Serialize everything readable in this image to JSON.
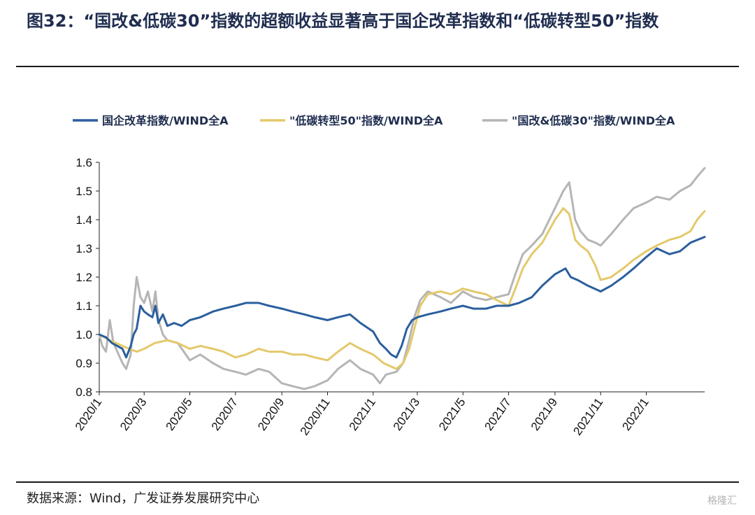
{
  "figure": {
    "title": "图32：“国改&低碳30”指数的超额收益显著高于国企改革指数和“低碳转型50”指数",
    "source": "数据来源：Wind，广发证券发展研究中心",
    "watermark": "格隆汇"
  },
  "chart_data": {
    "type": "line",
    "title": "",
    "xlabel": "",
    "ylabel": "",
    "ylim": [
      0.8,
      1.6
    ],
    "yticks": [
      "0.8",
      "0.9",
      "1.0",
      "1.1",
      "1.2",
      "1.3",
      "1.4",
      "1.5",
      "1.6"
    ],
    "xlim": [
      "2020-01",
      "2022-03-20"
    ],
    "xticks": [
      "2020/1",
      "2020/3",
      "2020/5",
      "2020/7",
      "2020/9",
      "2020/11",
      "2021/1",
      "2021/3",
      "2021/5",
      "2021/7",
      "2021/9",
      "2021/11",
      "2022/1"
    ],
    "grid": false,
    "legend_position": "top",
    "series": [
      {
        "name": "国企改革指数/WIND全A",
        "color": "#2b5f9e",
        "points": [
          [
            "2020-01-01",
            1.0
          ],
          [
            "2020-01-10",
            0.99
          ],
          [
            "2020-01-18",
            0.97
          ],
          [
            "2020-02-01",
            0.95
          ],
          [
            "2020-02-06",
            0.92
          ],
          [
            "2020-02-12",
            0.96
          ],
          [
            "2020-02-16",
            1.0
          ],
          [
            "2020-02-20",
            1.02
          ],
          [
            "2020-02-25",
            1.1
          ],
          [
            "2020-03-01",
            1.08
          ],
          [
            "2020-03-06",
            1.07
          ],
          [
            "2020-03-12",
            1.06
          ],
          [
            "2020-03-16",
            1.1
          ],
          [
            "2020-03-20",
            1.04
          ],
          [
            "2020-03-26",
            1.07
          ],
          [
            "2020-04-01",
            1.03
          ],
          [
            "2020-04-10",
            1.04
          ],
          [
            "2020-04-20",
            1.03
          ],
          [
            "2020-05-01",
            1.05
          ],
          [
            "2020-05-15",
            1.06
          ],
          [
            "2020-06-01",
            1.08
          ],
          [
            "2020-06-15",
            1.09
          ],
          [
            "2020-07-01",
            1.1
          ],
          [
            "2020-07-15",
            1.11
          ],
          [
            "2020-08-01",
            1.11
          ],
          [
            "2020-08-15",
            1.1
          ],
          [
            "2020-09-01",
            1.09
          ],
          [
            "2020-09-15",
            1.08
          ],
          [
            "2020-10-01",
            1.07
          ],
          [
            "2020-10-15",
            1.06
          ],
          [
            "2020-11-01",
            1.05
          ],
          [
            "2020-11-15",
            1.06
          ],
          [
            "2020-12-01",
            1.07
          ],
          [
            "2020-12-15",
            1.04
          ],
          [
            "2021-01-01",
            1.01
          ],
          [
            "2021-01-10",
            0.97
          ],
          [
            "2021-01-18",
            0.95
          ],
          [
            "2021-01-25",
            0.93
          ],
          [
            "2021-02-01",
            0.92
          ],
          [
            "2021-02-08",
            0.96
          ],
          [
            "2021-02-15",
            1.02
          ],
          [
            "2021-02-22",
            1.05
          ],
          [
            "2021-03-01",
            1.06
          ],
          [
            "2021-03-15",
            1.07
          ],
          [
            "2021-04-01",
            1.08
          ],
          [
            "2021-04-15",
            1.09
          ],
          [
            "2021-05-01",
            1.1
          ],
          [
            "2021-05-15",
            1.09
          ],
          [
            "2021-06-01",
            1.09
          ],
          [
            "2021-06-15",
            1.1
          ],
          [
            "2021-07-01",
            1.1
          ],
          [
            "2021-07-15",
            1.11
          ],
          [
            "2021-08-01",
            1.13
          ],
          [
            "2021-08-15",
            1.17
          ],
          [
            "2021-09-01",
            1.21
          ],
          [
            "2021-09-15",
            1.23
          ],
          [
            "2021-09-22",
            1.2
          ],
          [
            "2021-10-01",
            1.19
          ],
          [
            "2021-10-15",
            1.17
          ],
          [
            "2021-11-01",
            1.15
          ],
          [
            "2021-11-15",
            1.17
          ],
          [
            "2021-12-01",
            1.2
          ],
          [
            "2021-12-15",
            1.23
          ],
          [
            "2022-01-01",
            1.27
          ],
          [
            "2022-01-15",
            1.3
          ],
          [
            "2022-02-01",
            1.28
          ],
          [
            "2022-02-15",
            1.29
          ],
          [
            "2022-03-01",
            1.32
          ],
          [
            "2022-03-20",
            1.34
          ]
        ]
      },
      {
        "name": "\"低碳转型50\"指数/WIND全A",
        "color": "#e4c96b",
        "points": [
          [
            "2020-01-01",
            1.0
          ],
          [
            "2020-01-15",
            0.98
          ],
          [
            "2020-02-01",
            0.96
          ],
          [
            "2020-02-10",
            0.95
          ],
          [
            "2020-02-20",
            0.94
          ],
          [
            "2020-03-01",
            0.95
          ],
          [
            "2020-03-15",
            0.97
          ],
          [
            "2020-04-01",
            0.98
          ],
          [
            "2020-04-15",
            0.97
          ],
          [
            "2020-05-01",
            0.95
          ],
          [
            "2020-05-15",
            0.96
          ],
          [
            "2020-06-01",
            0.95
          ],
          [
            "2020-06-15",
            0.94
          ],
          [
            "2020-07-01",
            0.92
          ],
          [
            "2020-07-15",
            0.93
          ],
          [
            "2020-08-01",
            0.95
          ],
          [
            "2020-08-15",
            0.94
          ],
          [
            "2020-09-01",
            0.94
          ],
          [
            "2020-09-15",
            0.93
          ],
          [
            "2020-10-01",
            0.93
          ],
          [
            "2020-10-15",
            0.92
          ],
          [
            "2020-11-01",
            0.91
          ],
          [
            "2020-11-15",
            0.94
          ],
          [
            "2020-12-01",
            0.97
          ],
          [
            "2020-12-15",
            0.95
          ],
          [
            "2021-01-01",
            0.93
          ],
          [
            "2021-01-15",
            0.9
          ],
          [
            "2021-02-01",
            0.88
          ],
          [
            "2021-02-10",
            0.9
          ],
          [
            "2021-02-18",
            0.95
          ],
          [
            "2021-02-25",
            1.02
          ],
          [
            "2021-03-05",
            1.1
          ],
          [
            "2021-03-15",
            1.14
          ],
          [
            "2021-04-01",
            1.15
          ],
          [
            "2021-04-15",
            1.14
          ],
          [
            "2021-05-01",
            1.16
          ],
          [
            "2021-05-15",
            1.15
          ],
          [
            "2021-06-01",
            1.14
          ],
          [
            "2021-06-15",
            1.12
          ],
          [
            "2021-07-01",
            1.1
          ],
          [
            "2021-07-10",
            1.16
          ],
          [
            "2021-07-20",
            1.23
          ],
          [
            "2021-08-01",
            1.28
          ],
          [
            "2021-08-15",
            1.32
          ],
          [
            "2021-09-01",
            1.4
          ],
          [
            "2021-09-12",
            1.44
          ],
          [
            "2021-09-20",
            1.42
          ],
          [
            "2021-09-28",
            1.33
          ],
          [
            "2021-10-05",
            1.31
          ],
          [
            "2021-10-15",
            1.29
          ],
          [
            "2021-10-25",
            1.24
          ],
          [
            "2021-11-01",
            1.19
          ],
          [
            "2021-11-15",
            1.2
          ],
          [
            "2021-12-01",
            1.23
          ],
          [
            "2021-12-15",
            1.26
          ],
          [
            "2022-01-01",
            1.29
          ],
          [
            "2022-01-15",
            1.31
          ],
          [
            "2022-02-01",
            1.33
          ],
          [
            "2022-02-15",
            1.34
          ],
          [
            "2022-03-01",
            1.36
          ],
          [
            "2022-03-10",
            1.4
          ],
          [
            "2022-03-20",
            1.43
          ]
        ]
      },
      {
        "name": "\"国改&低碳30\"指数/WIND全A",
        "color": "#b5b5b5",
        "points": [
          [
            "2020-01-01",
            1.0
          ],
          [
            "2020-01-05",
            0.96
          ],
          [
            "2020-01-10",
            0.94
          ],
          [
            "2020-01-15",
            1.05
          ],
          [
            "2020-01-20",
            0.97
          ],
          [
            "2020-02-01",
            0.9
          ],
          [
            "2020-02-06",
            0.88
          ],
          [
            "2020-02-12",
            0.93
          ],
          [
            "2020-02-16",
            1.1
          ],
          [
            "2020-02-20",
            1.2
          ],
          [
            "2020-02-25",
            1.13
          ],
          [
            "2020-03-01",
            1.11
          ],
          [
            "2020-03-06",
            1.15
          ],
          [
            "2020-03-12",
            1.08
          ],
          [
            "2020-03-16",
            1.15
          ],
          [
            "2020-03-20",
            1.05
          ],
          [
            "2020-03-26",
            1.0
          ],
          [
            "2020-04-01",
            0.98
          ],
          [
            "2020-04-15",
            0.97
          ],
          [
            "2020-05-01",
            0.91
          ],
          [
            "2020-05-15",
            0.93
          ],
          [
            "2020-06-01",
            0.9
          ],
          [
            "2020-06-15",
            0.88
          ],
          [
            "2020-07-01",
            0.87
          ],
          [
            "2020-07-15",
            0.86
          ],
          [
            "2020-08-01",
            0.88
          ],
          [
            "2020-08-15",
            0.87
          ],
          [
            "2020-09-01",
            0.83
          ],
          [
            "2020-09-15",
            0.82
          ],
          [
            "2020-10-01",
            0.81
          ],
          [
            "2020-10-15",
            0.82
          ],
          [
            "2020-11-01",
            0.84
          ],
          [
            "2020-11-15",
            0.88
          ],
          [
            "2020-12-01",
            0.91
          ],
          [
            "2020-12-15",
            0.88
          ],
          [
            "2021-01-01",
            0.86
          ],
          [
            "2021-01-10",
            0.83
          ],
          [
            "2021-01-18",
            0.86
          ],
          [
            "2021-02-01",
            0.87
          ],
          [
            "2021-02-10",
            0.9
          ],
          [
            "2021-02-18",
            0.98
          ],
          [
            "2021-02-25",
            1.06
          ],
          [
            "2021-03-05",
            1.12
          ],
          [
            "2021-03-15",
            1.15
          ],
          [
            "2021-04-01",
            1.13
          ],
          [
            "2021-04-15",
            1.11
          ],
          [
            "2021-05-01",
            1.15
          ],
          [
            "2021-05-15",
            1.13
          ],
          [
            "2021-06-01",
            1.12
          ],
          [
            "2021-06-15",
            1.13
          ],
          [
            "2021-07-01",
            1.14
          ],
          [
            "2021-07-10",
            1.21
          ],
          [
            "2021-07-20",
            1.28
          ],
          [
            "2021-08-01",
            1.31
          ],
          [
            "2021-08-15",
            1.35
          ],
          [
            "2021-09-01",
            1.44
          ],
          [
            "2021-09-12",
            1.5
          ],
          [
            "2021-09-20",
            1.53
          ],
          [
            "2021-09-28",
            1.4
          ],
          [
            "2021-10-05",
            1.36
          ],
          [
            "2021-10-15",
            1.33
          ],
          [
            "2021-10-25",
            1.32
          ],
          [
            "2021-11-01",
            1.31
          ],
          [
            "2021-11-15",
            1.35
          ],
          [
            "2021-12-01",
            1.4
          ],
          [
            "2021-12-15",
            1.44
          ],
          [
            "2022-01-01",
            1.46
          ],
          [
            "2022-01-15",
            1.48
          ],
          [
            "2022-02-01",
            1.47
          ],
          [
            "2022-02-15",
            1.5
          ],
          [
            "2022-03-01",
            1.52
          ],
          [
            "2022-03-10",
            1.55
          ],
          [
            "2022-03-20",
            1.58
          ]
        ]
      }
    ]
  }
}
